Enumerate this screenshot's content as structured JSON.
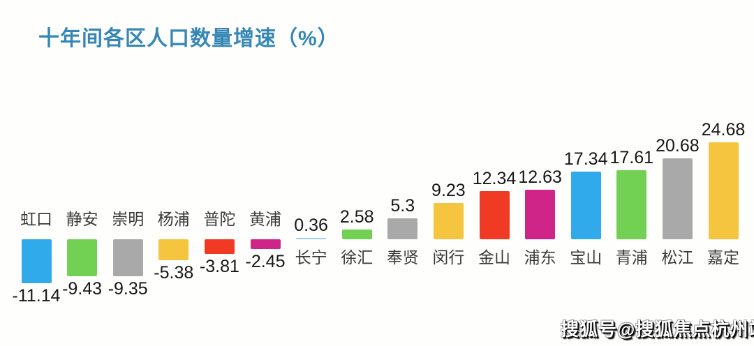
{
  "title": "十年间各区人口数量增速（%）",
  "watermark": "搜狐号@搜狐焦点杭州站",
  "colors": {
    "title": "#3687b5",
    "value_label": "#171717",
    "category_label": "#3a3a3a",
    "background": "#fefefd",
    "blue": "#31aaec",
    "green": "#72d052",
    "gray": "#a9a9a9",
    "gold": "#f5c53f",
    "red": "#f13a23",
    "magenta": "#d02588",
    "light_blue": "#9ccfe2"
  },
  "chart_data": {
    "type": "bar",
    "title": "十年间各区人口数量增速（%）",
    "xlabel": "",
    "ylabel": "",
    "ylim": [
      -13,
      27
    ],
    "grid": false,
    "legend": false,
    "baseline": 0,
    "categories": [
      "虹口",
      "静安",
      "崇明",
      "杨浦",
      "普陀",
      "黄浦",
      "长宁",
      "徐汇",
      "奉贤",
      "闵行",
      "金山",
      "浦东",
      "宝山",
      "青浦",
      "松江",
      "嘉定"
    ],
    "values": [
      -11.14,
      -9.43,
      -9.35,
      -5.38,
      -3.81,
      -2.45,
      0.36,
      2.58,
      5.3,
      9.23,
      12.34,
      12.63,
      17.34,
      17.61,
      20.68,
      24.68
    ],
    "value_labels": [
      "-11.14",
      "-9.43",
      "-9.35",
      "-5.38",
      "-3.81",
      "-2.45",
      "0.36",
      "2.58",
      "5.3",
      "9.23",
      "12.34",
      "12.63",
      "17.34",
      "17.61",
      "20.68",
      "24.68"
    ],
    "bar_colors": [
      "#31aaec",
      "#72d052",
      "#a9a9a9",
      "#f5c53f",
      "#f13a23",
      "#d02588",
      "#9ccfe2",
      "#72d052",
      "#a9a9a9",
      "#f5c53f",
      "#f13a23",
      "#d02588",
      "#31aaec",
      "#72d052",
      "#a9a9a9",
      "#f5c53f"
    ]
  }
}
